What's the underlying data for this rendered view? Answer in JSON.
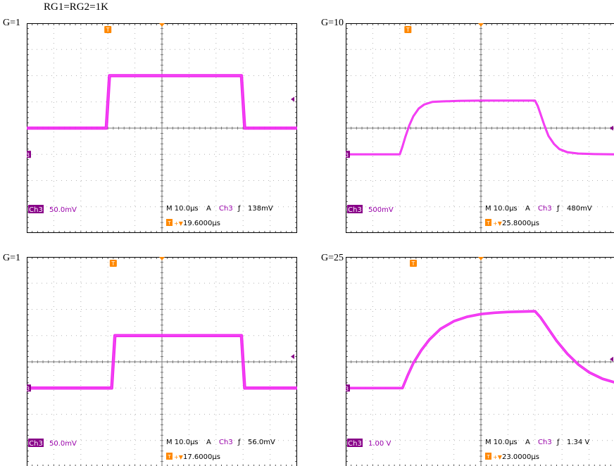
{
  "page": {
    "title": "RG1=RG2=1K"
  },
  "colors": {
    "trace": "#ee22ee",
    "marker": "#880088",
    "trigger": "#ff8800",
    "grid": "#b4b4b4",
    "frame": "#000000",
    "channel_text": "#9900aa",
    "readout_text": "#000000"
  },
  "icons": {
    "trigger_marker": "orange square with letter T",
    "ground_marker": "purple square with digit 3",
    "trigger_level": "purple left-pointing triangle",
    "center_marker": "orange down-pointing triangle"
  },
  "chart_data": [
    {
      "type": "line",
      "title": "G=1",
      "gain_label": "G=1",
      "channel_label": "Ch3",
      "ground_label": "3",
      "volts_per_div": "50.0mV",
      "timebase": "M 10.0µs",
      "trigger_mode": "A",
      "trigger_source": "Ch3",
      "trigger_slope_symbol": "ƒ",
      "trigger_level": "138mV",
      "trigger_offset": "19.6000µs",
      "trigger_offset_prefix": "+▼",
      "grid": true,
      "xlim": [
        0,
        10
      ],
      "ylim": [
        0,
        8
      ],
      "x_units": "divisions",
      "y_units": "divisions",
      "ground_level_div": 3.0,
      "trigger_position_div": 3.0,
      "trigger_level_div": 5.1,
      "trace_thickness_div": 0.12,
      "series": [
        {
          "x": [
            0,
            2.94,
            3.06,
            7.94,
            8.06,
            10
          ],
          "y": [
            4.0,
            4.0,
            6.0,
            6.0,
            4.0,
            4.0
          ]
        }
      ]
    },
    {
      "type": "line",
      "title": "G=10",
      "gain_label": "G=10",
      "channel_label": "Ch3",
      "ground_label": "3",
      "volts_per_div": "500mV",
      "timebase": "M 10.0µs",
      "trigger_mode": "A",
      "trigger_source": "Ch3",
      "trigger_slope_symbol": "ƒ",
      "trigger_level": "480mV",
      "trigger_offset": "25.8000µs",
      "trigger_offset_prefix": "+▼",
      "grid": true,
      "xlim": [
        0,
        10
      ],
      "ylim": [
        0,
        8
      ],
      "x_units": "divisions",
      "y_units": "divisions",
      "ground_level_div": 3.0,
      "trigger_position_div": 2.3,
      "trigger_level_div": 4.0,
      "trace_thickness_div": 0.08,
      "series": [
        {
          "x": [
            0,
            2.0,
            2.1,
            2.2,
            2.35,
            2.5,
            2.7,
            2.9,
            3.2,
            3.6,
            4.2,
            5.0,
            6.0,
            7.0,
            7.1,
            7.2,
            7.35,
            7.5,
            7.7,
            7.9,
            8.2,
            8.6,
            9.2,
            10
          ],
          "y": [
            3.0,
            3.0,
            3.3,
            3.65,
            4.1,
            4.45,
            4.75,
            4.9,
            5.0,
            5.02,
            5.04,
            5.05,
            5.05,
            5.05,
            4.85,
            4.55,
            4.1,
            3.7,
            3.4,
            3.2,
            3.08,
            3.03,
            3.01,
            3.0
          ]
        }
      ]
    },
    {
      "type": "line",
      "title": "G=1",
      "gain_label": "G=1",
      "channel_label": "Ch3",
      "ground_label": "3",
      "volts_per_div": "50.0mV",
      "timebase": "M 10.0µs",
      "trigger_mode": "A",
      "trigger_source": "Ch3",
      "trigger_slope_symbol": "ƒ",
      "trigger_level": "56.0mV",
      "trigger_offset": "17.6000µs",
      "trigger_offset_prefix": "+▼",
      "grid": true,
      "xlim": [
        0,
        10
      ],
      "ylim": [
        0,
        8
      ],
      "x_units": "divisions",
      "y_units": "divisions",
      "ground_level_div": 3.0,
      "trigger_position_div": 3.2,
      "trigger_level_div": 4.2,
      "trace_thickness_div": 0.12,
      "series": [
        {
          "x": [
            0,
            3.14,
            3.26,
            7.94,
            8.06,
            10
          ],
          "y": [
            3.0,
            3.0,
            5.0,
            5.0,
            3.0,
            3.0
          ]
        }
      ]
    },
    {
      "type": "line",
      "title": "G=25",
      "gain_label": "G=25",
      "channel_label": "Ch3",
      "ground_label": "3",
      "volts_per_div": "1.00 V",
      "timebase": "M 10.0µs",
      "trigger_mode": "A",
      "trigger_source": "Ch3",
      "trigger_slope_symbol": "ƒ",
      "trigger_level": "1.34 V",
      "trigger_offset": "23.0000µs",
      "trigger_offset_prefix": "+▼",
      "grid": true,
      "xlim": [
        0,
        10
      ],
      "ylim": [
        0,
        8
      ],
      "x_units": "divisions",
      "y_units": "divisions",
      "ground_level_div": 3.0,
      "trigger_position_div": 2.5,
      "trigger_level_div": 4.1,
      "trace_thickness_div": 0.1,
      "series": [
        {
          "x": [
            0,
            2.1,
            2.3,
            2.5,
            2.8,
            3.1,
            3.5,
            4.0,
            4.5,
            5.0,
            5.5,
            6.0,
            7.0,
            7.2,
            7.5,
            7.8,
            8.2,
            8.6,
            9.0,
            9.5,
            10
          ],
          "y": [
            3.0,
            3.0,
            3.5,
            3.95,
            4.45,
            4.85,
            5.25,
            5.55,
            5.72,
            5.82,
            5.87,
            5.9,
            5.93,
            5.7,
            5.25,
            4.8,
            4.3,
            3.9,
            3.6,
            3.35,
            3.2
          ]
        }
      ]
    }
  ]
}
